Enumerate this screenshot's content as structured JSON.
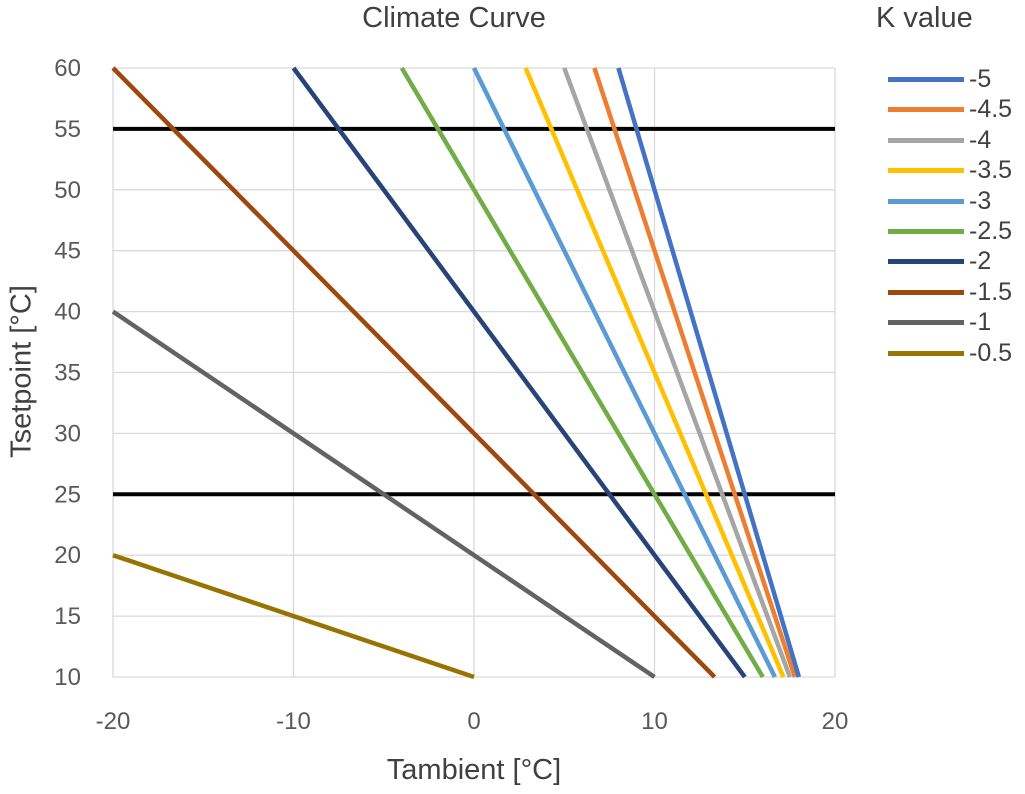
{
  "chart_data": {
    "type": "line",
    "title": "Climate Curve",
    "xlabel": "Tambient [°C]",
    "ylabel": "Tsetpoint  [°C]",
    "xlim": [
      -20,
      20
    ],
    "ylim": [
      10,
      60
    ],
    "x_ticks": [
      -20,
      -10,
      0,
      10,
      20
    ],
    "y_ticks": [
      10,
      15,
      20,
      25,
      30,
      35,
      40,
      45,
      50,
      55,
      60
    ],
    "grid": true,
    "legend_title": "K value",
    "legend_position": "right",
    "series": [
      {
        "name": "-5",
        "k": -5,
        "color": "#4472C4",
        "points": [
          [
            8,
            60
          ],
          [
            10,
            50
          ],
          [
            18,
            10
          ]
        ]
      },
      {
        "name": "-4.5",
        "k": -4.5,
        "color": "#ED7D31",
        "points": [
          [
            6.67,
            60
          ],
          [
            17.78,
            10
          ]
        ]
      },
      {
        "name": "-4",
        "k": -4,
        "color": "#A5A5A5",
        "points": [
          [
            5,
            60
          ],
          [
            17.5,
            10
          ]
        ]
      },
      {
        "name": "-3.5",
        "k": -3.5,
        "color": "#FFC000",
        "points": [
          [
            2.86,
            60
          ],
          [
            17.14,
            10
          ]
        ]
      },
      {
        "name": "-3",
        "k": -3,
        "color": "#5B9BD5",
        "points": [
          [
            0,
            60
          ],
          [
            16.67,
            10
          ]
        ]
      },
      {
        "name": "-2.5",
        "k": -2.5,
        "color": "#70AD47",
        "points": [
          [
            -4,
            60
          ],
          [
            16,
            10
          ]
        ]
      },
      {
        "name": "-2",
        "k": -2,
        "color": "#264478",
        "points": [
          [
            -10,
            60
          ],
          [
            15,
            10
          ]
        ]
      },
      {
        "name": "-1.5",
        "k": -1.5,
        "color": "#9E480E",
        "points": [
          [
            -20,
            60
          ],
          [
            13.33,
            10
          ]
        ]
      },
      {
        "name": "-1",
        "k": -1,
        "color": "#636363",
        "points": [
          [
            -20,
            40
          ],
          [
            10,
            10
          ]
        ]
      },
      {
        "name": "-0.5",
        "k": -0.5,
        "color": "#997300",
        "points": [
          [
            -20,
            20
          ],
          [
            0,
            10
          ]
        ]
      }
    ],
    "reference_lines": [
      {
        "y": 55,
        "color": "#000000"
      },
      {
        "y": 25,
        "color": "#000000"
      }
    ]
  }
}
